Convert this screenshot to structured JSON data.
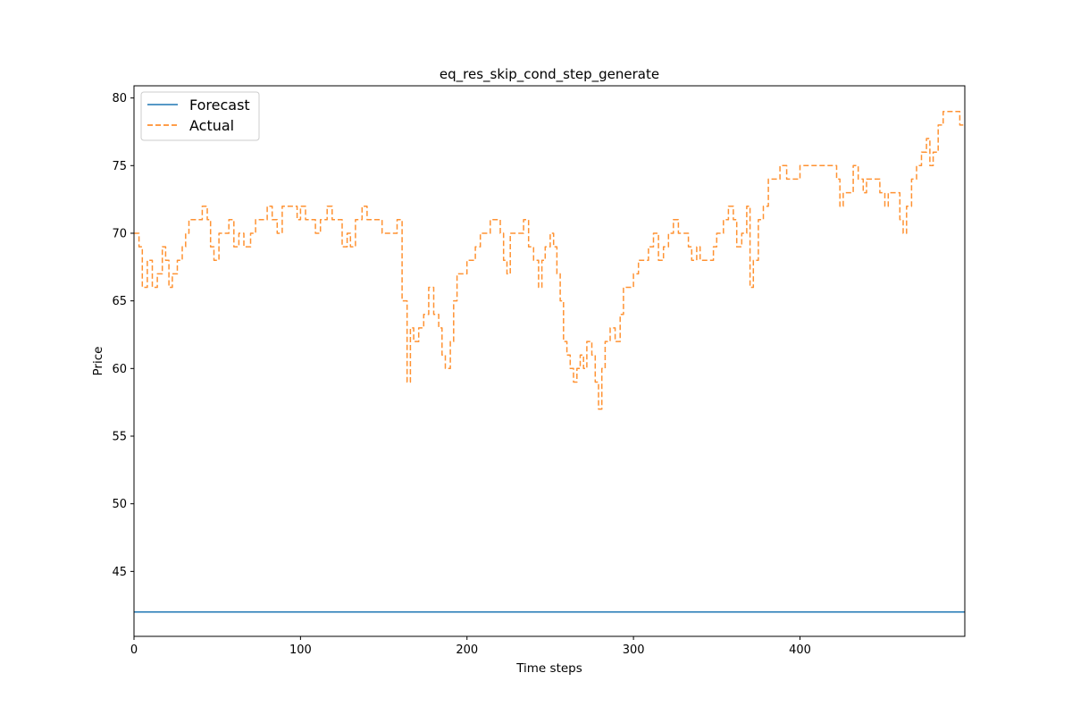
{
  "chart_data": {
    "type": "line",
    "title": "eq_res_skip_cond_step_generate",
    "xlabel": "Time steps",
    "ylabel": "Price",
    "xlim": [
      0,
      499
    ],
    "ylim": [
      40.2,
      80.9
    ],
    "xticks": [
      0,
      100,
      200,
      300,
      400
    ],
    "yticks": [
      45,
      50,
      55,
      60,
      65,
      70,
      75,
      80
    ],
    "grid": false,
    "legend": {
      "position": "top-left",
      "entries": [
        "Forecast",
        "Actual"
      ]
    },
    "series": [
      {
        "name": "Forecast",
        "color": "#1f77b4",
        "style": "solid",
        "x": [
          0,
          499
        ],
        "y": [
          42,
          42
        ]
      },
      {
        "name": "Actual",
        "color": "#ff7f0e",
        "style": "dashed",
        "points": [
          [
            0,
            70
          ],
          [
            3,
            69
          ],
          [
            5,
            66
          ],
          [
            8,
            68
          ],
          [
            11,
            66
          ],
          [
            14,
            67
          ],
          [
            17,
            69
          ],
          [
            19,
            68
          ],
          [
            21,
            66
          ],
          [
            23,
            67
          ],
          [
            26,
            68
          ],
          [
            29,
            69
          ],
          [
            31,
            70
          ],
          [
            33,
            71
          ],
          [
            38,
            71
          ],
          [
            41,
            72
          ],
          [
            44,
            71
          ],
          [
            46,
            69
          ],
          [
            48,
            68
          ],
          [
            51,
            70
          ],
          [
            54,
            70
          ],
          [
            57,
            71
          ],
          [
            60,
            69
          ],
          [
            63,
            70
          ],
          [
            66,
            69
          ],
          [
            70,
            70
          ],
          [
            73,
            71
          ],
          [
            78,
            71
          ],
          [
            80,
            72
          ],
          [
            83,
            71
          ],
          [
            86,
            70
          ],
          [
            89,
            72
          ],
          [
            95,
            72
          ],
          [
            98,
            71
          ],
          [
            100,
            72
          ],
          [
            103,
            71
          ],
          [
            106,
            71
          ],
          [
            109,
            70
          ],
          [
            112,
            71
          ],
          [
            116,
            72
          ],
          [
            119,
            71
          ],
          [
            122,
            71
          ],
          [
            125,
            69
          ],
          [
            128,
            70
          ],
          [
            130,
            69
          ],
          [
            133,
            71
          ],
          [
            137,
            72
          ],
          [
            140,
            71
          ],
          [
            145,
            71
          ],
          [
            149,
            70
          ],
          [
            155,
            70
          ],
          [
            158,
            71
          ],
          [
            161,
            65
          ],
          [
            164,
            59
          ],
          [
            166,
            63
          ],
          [
            168,
            62
          ],
          [
            171,
            63
          ],
          [
            174,
            64
          ],
          [
            177,
            66
          ],
          [
            180,
            64
          ],
          [
            183,
            63
          ],
          [
            185,
            61
          ],
          [
            187,
            60
          ],
          [
            190,
            62
          ],
          [
            192,
            65
          ],
          [
            194,
            67
          ],
          [
            197,
            67
          ],
          [
            200,
            68
          ],
          [
            202,
            68
          ],
          [
            205,
            69
          ],
          [
            208,
            70
          ],
          [
            211,
            70
          ],
          [
            214,
            71
          ],
          [
            218,
            71
          ],
          [
            220,
            70
          ],
          [
            222,
            68
          ],
          [
            224,
            67
          ],
          [
            226,
            70
          ],
          [
            230,
            70
          ],
          [
            234,
            71
          ],
          [
            237,
            69
          ],
          [
            240,
            68
          ],
          [
            243,
            66
          ],
          [
            245,
            68
          ],
          [
            247,
            69
          ],
          [
            250,
            70
          ],
          [
            252,
            69
          ],
          [
            254,
            67
          ],
          [
            256,
            65
          ],
          [
            258,
            62
          ],
          [
            260,
            61
          ],
          [
            262,
            60
          ],
          [
            264,
            59
          ],
          [
            266,
            60
          ],
          [
            268,
            61
          ],
          [
            270,
            60
          ],
          [
            272,
            62
          ],
          [
            275,
            61
          ],
          [
            277,
            59
          ],
          [
            279,
            57
          ],
          [
            281,
            60
          ],
          [
            283,
            62
          ],
          [
            286,
            63
          ],
          [
            289,
            62
          ],
          [
            292,
            64
          ],
          [
            294,
            66
          ],
          [
            297,
            66
          ],
          [
            300,
            67
          ],
          [
            303,
            68
          ],
          [
            306,
            68
          ],
          [
            309,
            69
          ],
          [
            312,
            70
          ],
          [
            315,
            68
          ],
          [
            318,
            69
          ],
          [
            321,
            70
          ],
          [
            324,
            71
          ],
          [
            327,
            70
          ],
          [
            330,
            70
          ],
          [
            333,
            69
          ],
          [
            335,
            68
          ],
          [
            338,
            69
          ],
          [
            340,
            68
          ],
          [
            345,
            68
          ],
          [
            348,
            69
          ],
          [
            350,
            70
          ],
          [
            354,
            71
          ],
          [
            357,
            72
          ],
          [
            360,
            71
          ],
          [
            362,
            69
          ],
          [
            365,
            70
          ],
          [
            368,
            72
          ],
          [
            370,
            66
          ],
          [
            372,
            68
          ],
          [
            375,
            71
          ],
          [
            378,
            72
          ],
          [
            381,
            74
          ],
          [
            385,
            74
          ],
          [
            388,
            75
          ],
          [
            392,
            74
          ],
          [
            397,
            74
          ],
          [
            400,
            75
          ],
          [
            405,
            75
          ],
          [
            410,
            75
          ],
          [
            415,
            75
          ],
          [
            419,
            75
          ],
          [
            422,
            74
          ],
          [
            424,
            72
          ],
          [
            426,
            73
          ],
          [
            430,
            73
          ],
          [
            432,
            75
          ],
          [
            435,
            74
          ],
          [
            438,
            73
          ],
          [
            440,
            74
          ],
          [
            445,
            74
          ],
          [
            448,
            73
          ],
          [
            451,
            72
          ],
          [
            453,
            73
          ],
          [
            457,
            73
          ],
          [
            460,
            71
          ],
          [
            462,
            70
          ],
          [
            464,
            72
          ],
          [
            467,
            74
          ],
          [
            470,
            75
          ],
          [
            473,
            76
          ],
          [
            476,
            77
          ],
          [
            478,
            75
          ],
          [
            480,
            76
          ],
          [
            483,
            78
          ],
          [
            486,
            79
          ],
          [
            490,
            79
          ],
          [
            494,
            79
          ],
          [
            496,
            78
          ],
          [
            499,
            78
          ]
        ]
      }
    ]
  }
}
